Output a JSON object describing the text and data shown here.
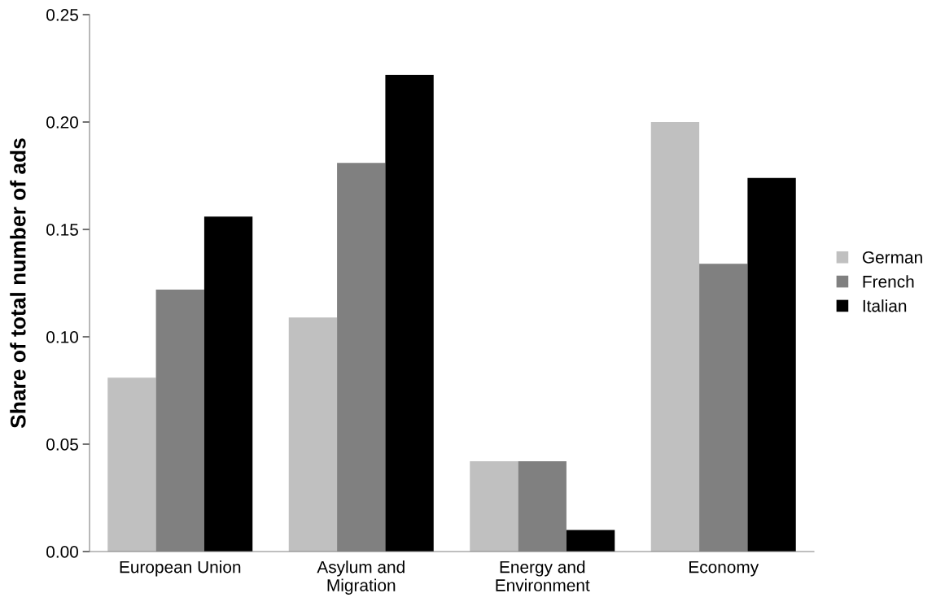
{
  "chart_data": {
    "type": "bar",
    "ylabel": "Share of total number of ads",
    "categories": [
      "European Union",
      "Asylum and Migration",
      "Energy and Environment",
      "Economy"
    ],
    "series": [
      {
        "name": "German",
        "color": "#c0c0c0",
        "values": [
          0.081,
          0.109,
          0.042,
          0.2
        ]
      },
      {
        "name": "French",
        "color": "#808080",
        "values": [
          0.122,
          0.181,
          0.042,
          0.134
        ]
      },
      {
        "name": "Italian",
        "color": "#000000",
        "values": [
          0.156,
          0.222,
          0.01,
          0.174
        ]
      }
    ],
    "ylim": [
      0,
      0.25
    ],
    "yticks": [
      {
        "value": 0,
        "label": "0.00"
      },
      {
        "value": 0.05,
        "label": "0.05"
      },
      {
        "value": 0.1,
        "label": "0.10"
      },
      {
        "value": 0.15,
        "label": "0.15"
      },
      {
        "value": 0.2,
        "label": "0.20"
      },
      {
        "value": 0.25,
        "label": "0.25"
      }
    ],
    "grid": false,
    "legend": "right"
  }
}
